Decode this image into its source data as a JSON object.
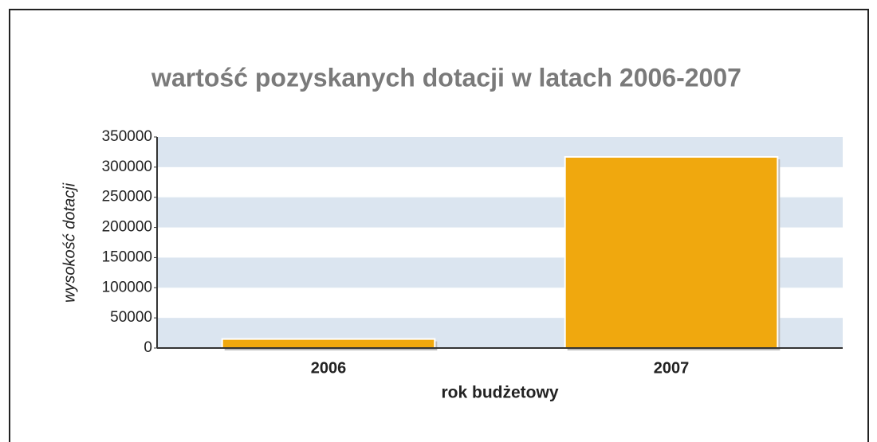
{
  "chart_data": {
    "type": "bar",
    "title": "wartość pozyskanych dotacji w latach 2006-2007",
    "categories": [
      "2006",
      "2007"
    ],
    "values": [
      15000,
      317000
    ],
    "color": "#f0a80e",
    "xlabel": "rok budżetowy",
    "ylabel": "wysokość dotacji",
    "ylim": [
      0,
      350000
    ],
    "yticks": [
      0,
      50000,
      100000,
      150000,
      200000,
      250000,
      300000,
      350000
    ],
    "grid": true
  }
}
